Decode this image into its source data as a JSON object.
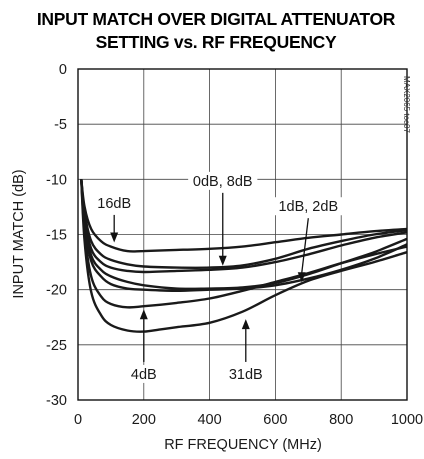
{
  "chart_data": {
    "type": "line",
    "title": "INPUT MATCH OVER DIGITAL ATTENUATOR",
    "subtitle": "SETTING vs. RF FREQUENCY",
    "xlabel": "RF FREQUENCY (MHz)",
    "ylabel": "INPUT MATCH (dB)",
    "xlim": [
      0,
      1000
    ],
    "ylim": [
      -30,
      0
    ],
    "xticks": [
      0,
      200,
      400,
      600,
      800,
      1000
    ],
    "yticks": [
      0,
      -5,
      -10,
      -15,
      -20,
      -25,
      -30
    ],
    "grid": true,
    "watermark": "MAX2065 toc07",
    "series": [
      {
        "name": "16dB",
        "x": [
          10,
          20,
          40,
          70,
          100,
          150,
          200,
          300,
          400,
          500,
          600,
          700,
          800,
          900,
          1000
        ],
        "y": [
          -10,
          -12.5,
          -14.5,
          -15.6,
          -16.1,
          -16.5,
          -16.5,
          -16.4,
          -16.3,
          -16.1,
          -15.7,
          -15.3,
          -15.0,
          -14.7,
          -14.5
        ]
      },
      {
        "name": "0dB",
        "x": [
          10,
          20,
          40,
          70,
          100,
          150,
          200,
          300,
          400,
          500,
          600,
          700,
          800,
          900,
          1000
        ],
        "y": [
          -10,
          -13.0,
          -15.6,
          -16.8,
          -17.3,
          -17.7,
          -17.9,
          -18.0,
          -18.0,
          -17.8,
          -17.2,
          -16.3,
          -15.6,
          -15.0,
          -14.6
        ]
      },
      {
        "name": "8dB",
        "x": [
          10,
          20,
          40,
          70,
          100,
          150,
          200,
          300,
          400,
          500,
          600,
          700,
          800,
          900,
          1000
        ],
        "y": [
          -10,
          -13.4,
          -16.3,
          -17.5,
          -18.0,
          -18.3,
          -18.4,
          -18.3,
          -18.2,
          -18.0,
          -17.5,
          -16.8,
          -16.0,
          -15.3,
          -14.8
        ]
      },
      {
        "name": "1dB",
        "x": [
          10,
          20,
          40,
          70,
          100,
          150,
          200,
          300,
          400,
          500,
          600,
          700,
          800,
          900,
          1000
        ],
        "y": [
          -10,
          -13.8,
          -16.9,
          -18.2,
          -18.8,
          -19.3,
          -19.6,
          -19.9,
          -19.9,
          -19.8,
          -19.4,
          -18.6,
          -17.6,
          -16.6,
          -15.4
        ]
      },
      {
        "name": "2dB",
        "x": [
          10,
          20,
          40,
          70,
          100,
          150,
          200,
          300,
          400,
          500,
          600,
          700,
          800,
          900,
          1000
        ],
        "y": [
          -10,
          -14.1,
          -17.4,
          -18.8,
          -19.5,
          -19.9,
          -20.0,
          -20.1,
          -20.0,
          -19.9,
          -19.6,
          -19.0,
          -18.2,
          -17.2,
          -15.9
        ]
      },
      {
        "name": "4dB",
        "x": [
          10,
          20,
          40,
          70,
          100,
          150,
          200,
          300,
          400,
          500,
          600,
          700,
          800,
          900,
          1000
        ],
        "y": [
          -10,
          -14.8,
          -18.8,
          -20.6,
          -21.3,
          -21.6,
          -21.5,
          -21.2,
          -20.8,
          -20.1,
          -19.3,
          -18.5,
          -17.6,
          -16.8,
          -16.1
        ]
      },
      {
        "name": "31dB",
        "x": [
          10,
          20,
          40,
          70,
          100,
          150,
          200,
          250,
          300,
          400,
          500,
          600,
          700,
          800,
          900,
          1000
        ],
        "y": [
          -10,
          -15.6,
          -20.2,
          -22.3,
          -23.2,
          -23.7,
          -23.8,
          -23.6,
          -23.4,
          -23.0,
          -22.0,
          -20.5,
          -19.2,
          -18.3,
          -17.5,
          -16.6
        ]
      }
    ],
    "annotations": [
      {
        "text": "16dB",
        "x": 110,
        "y": -12.5,
        "arrow_to": [
          110,
          -16.0
        ]
      },
      {
        "text": "0dB, 8dB",
        "x": 440,
        "y": -10.5,
        "arrow_to": [
          440,
          -18.1
        ]
      },
      {
        "text": "1dB, 2dB",
        "x": 700,
        "y": -12.8,
        "arrow_to": [
          680,
          -19.6
        ]
      },
      {
        "text": "4dB",
        "x": 200,
        "y": -28.0,
        "arrow_to": [
          200,
          -21.5
        ]
      },
      {
        "text": "31dB",
        "x": 510,
        "y": -28.0,
        "arrow_to": [
          510,
          -22.4
        ]
      }
    ]
  }
}
